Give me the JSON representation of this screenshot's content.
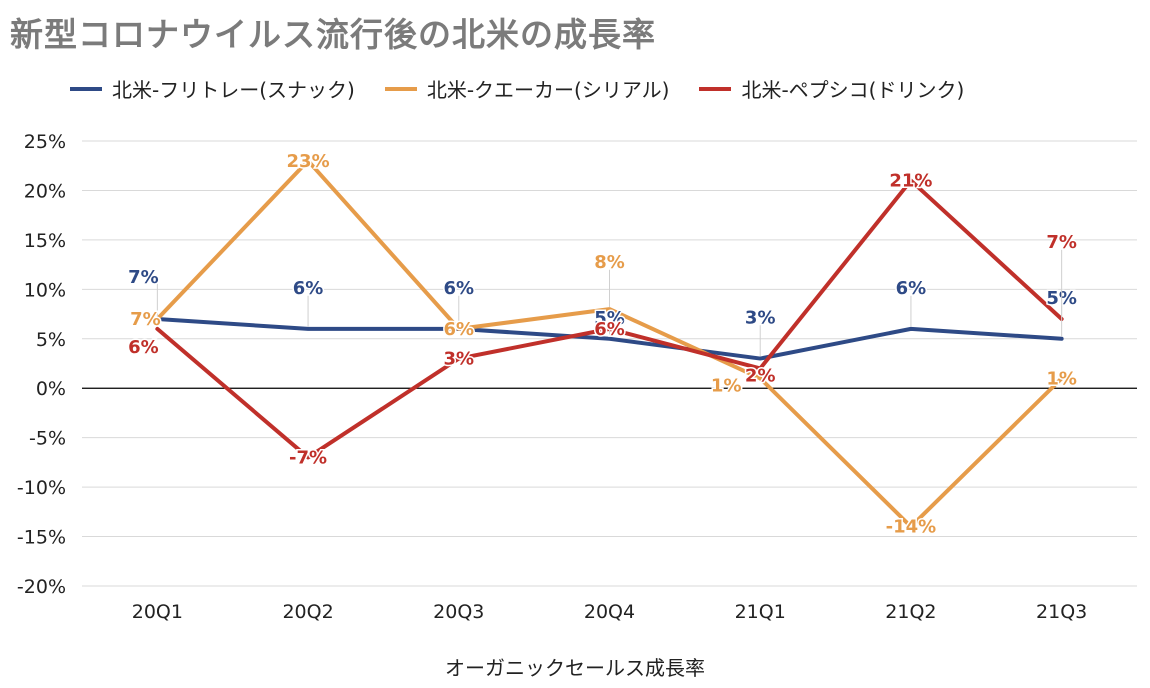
{
  "title": "新型コロナウイルス流行後の北米の成長率",
  "chart_data": {
    "type": "line",
    "title": "新型コロナウイルス流行後の北米の成長率",
    "xlabel": "オーガニックセールス成長率",
    "ylabel": "",
    "categories": [
      "20Q1",
      "20Q2",
      "20Q3",
      "20Q4",
      "21Q1",
      "21Q2",
      "21Q3"
    ],
    "ylim": [
      -20,
      25
    ],
    "yticks": [
      25,
      20,
      15,
      10,
      5,
      0,
      -5,
      -10,
      -15,
      -20
    ],
    "ytick_labels": [
      "25%",
      "20%",
      "15%",
      "10%",
      "5%",
      "0%",
      "-5%",
      "-10%",
      "-15%",
      "-20%"
    ],
    "grid": true,
    "legend_position": "top",
    "series": [
      {
        "name": "北米-フリトレー(スナック)",
        "color": "#2e4a86",
        "values": [
          7,
          6,
          6,
          5,
          3,
          6,
          5
        ],
        "labels": [
          "7%",
          "6%",
          "6%",
          "5%",
          "3%",
          "6%",
          "5%"
        ]
      },
      {
        "name": "北米-クエーカー(シリアル)",
        "color": "#e69c4a",
        "values": [
          7,
          23,
          6,
          8,
          1,
          -14,
          1
        ],
        "labels": [
          "7%",
          "23%",
          "6%",
          "8%",
          "1%",
          "-14%",
          "1%"
        ]
      },
      {
        "name": "北米-ペプシコ(ドリンク)",
        "color": "#c0302a",
        "values": [
          6,
          -7,
          3,
          6,
          2,
          21,
          7
        ],
        "labels": [
          "6%",
          "-7%",
          "3%",
          "6%",
          "2%",
          "21%",
          "7%"
        ]
      }
    ]
  }
}
